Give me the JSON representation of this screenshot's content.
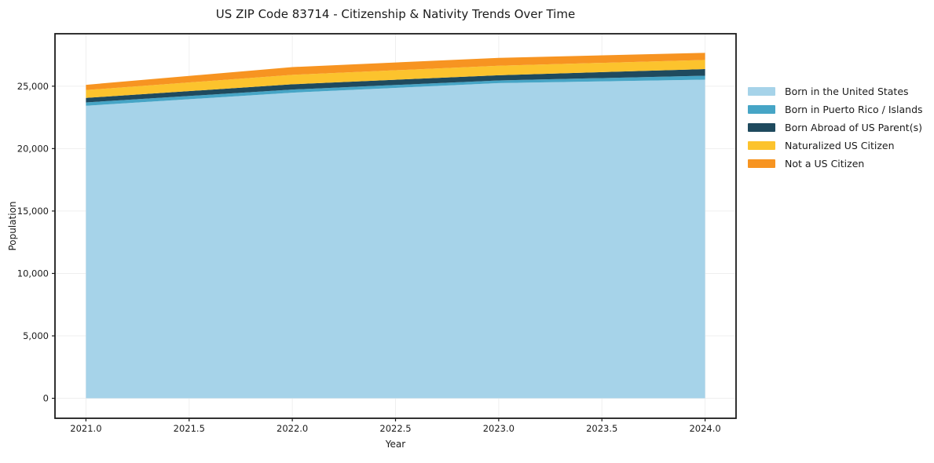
{
  "chart_data": {
    "type": "area",
    "stacked": true,
    "title": "US ZIP Code 83714 - Citizenship & Nativity Trends Over Time",
    "xlabel": "Year",
    "ylabel": "Population",
    "x": [
      2021,
      2022,
      2023,
      2024
    ],
    "series": [
      {
        "name": "Born in the United States",
        "color": "#A6D3E9",
        "values": [
          23430,
          24480,
          25250,
          25520
        ]
      },
      {
        "name": "Born in Puerto Rico / Islands",
        "color": "#46A5C6",
        "values": [
          270,
          250,
          210,
          320
        ]
      },
      {
        "name": "Born Abroad of US Parent(s)",
        "color": "#1F4A5E",
        "values": [
          360,
          420,
          420,
          530
        ]
      },
      {
        "name": "Naturalized US Citizen",
        "color": "#FCC32D",
        "values": [
          630,
          760,
          760,
          730
        ]
      },
      {
        "name": "Not a US Citizen",
        "color": "#F79421",
        "values": [
          420,
          620,
          630,
          570
        ]
      }
    ],
    "x_ticks": {
      "values": [
        2021.0,
        2021.5,
        2022.0,
        2022.5,
        2023.0,
        2023.5,
        2024.0
      ],
      "labels": [
        "2021.0",
        "2021.5",
        "2022.0",
        "2022.5",
        "2023.0",
        "2023.5",
        "2024.0"
      ]
    },
    "y_ticks": {
      "values": [
        0,
        5000,
        10000,
        15000,
        20000,
        25000
      ],
      "labels": [
        "0",
        "5,000",
        "10,000",
        "15,000",
        "20,000",
        "25,000"
      ]
    },
    "xlim": [
      2020.85,
      2024.15
    ],
    "ylim": [
      -1600,
      29200
    ],
    "grid": true,
    "legend_position": "right",
    "colors": {
      "spine": "#1b1b1b",
      "gridline": "#efefef",
      "tick_label": "#1b1b1b",
      "background": "#ffffff"
    }
  }
}
